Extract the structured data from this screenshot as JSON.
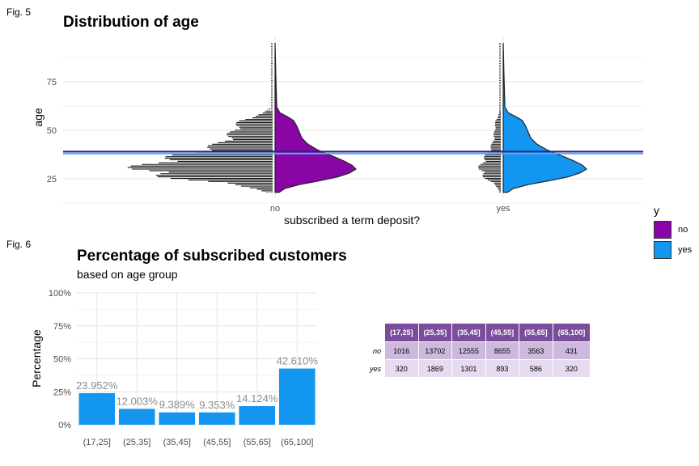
{
  "fig5": {
    "fig_label": "Fig. 5",
    "title": "Distribution of age",
    "y_axis_label": "age",
    "x_axis_label": "subscribed a term deposit?",
    "x_ticks": [
      "no",
      "yes"
    ],
    "y_ticks": [
      "25",
      "50",
      "75"
    ]
  },
  "fig6": {
    "fig_label": "Fig. 6",
    "title": "Percentage of subscribed customers",
    "subtitle": "based on age group",
    "y_axis_label": "Percentage",
    "y_ticks": [
      "0%",
      "25%",
      "50%",
      "75%",
      "100%"
    ]
  },
  "legend": {
    "title": "y",
    "items": [
      {
        "label": "no",
        "color": "#8a05a6"
      },
      {
        "label": "yes",
        "color": "#1296f0"
      }
    ]
  },
  "table": {
    "headers": [
      "(17,25]",
      "(25,35]",
      "(35,45]",
      "(45,55]",
      "(55,65]",
      "(65,100]"
    ],
    "rows": [
      {
        "label": "no",
        "values": [
          "1016",
          "13702",
          "12555",
          "8655",
          "3563",
          "431"
        ]
      },
      {
        "label": "yes",
        "values": [
          "320",
          "1869",
          "1301",
          "893",
          "586",
          "320"
        ]
      }
    ]
  },
  "colors": {
    "no": "#8a05a6",
    "yes": "#1296f0",
    "mean_line_dark": "#1f2a7a",
    "mean_line_light": "#6aa0ff",
    "header": "#7b4b9c"
  },
  "chart_data": [
    {
      "type": "area",
      "chart_kind": "half-violin with dot strip",
      "title": "Distribution of age",
      "xlabel": "subscribed a term deposit?",
      "ylabel": "age",
      "categories": [
        "no",
        "yes"
      ],
      "ylim": [
        15,
        98
      ],
      "yticks": [
        25,
        50,
        75
      ],
      "grid": true,
      "legend": "right",
      "reference_lines": [
        {
          "y": 39
        },
        {
          "y": 38
        }
      ],
      "series": [
        {
          "name": "no",
          "density": [
            [
              18,
              0.05
            ],
            [
              20,
              0.12
            ],
            [
              22,
              0.3
            ],
            [
              24,
              0.55
            ],
            [
              26,
              0.78
            ],
            [
              28,
              0.92
            ],
            [
              30,
              1.0
            ],
            [
              32,
              0.95
            ],
            [
              34,
              0.86
            ],
            [
              36,
              0.75
            ],
            [
              38,
              0.63
            ],
            [
              40,
              0.52
            ],
            [
              43,
              0.4
            ],
            [
              46,
              0.33
            ],
            [
              49,
              0.3
            ],
            [
              52,
              0.27
            ],
            [
              55,
              0.23
            ],
            [
              57,
              0.15
            ],
            [
              59,
              0.06
            ],
            [
              62,
              0.02
            ],
            [
              70,
              0.015
            ],
            [
              80,
              0.008
            ],
            [
              88,
              0.004
            ],
            [
              95,
              0.0
            ]
          ]
        },
        {
          "name": "yes",
          "density": [
            [
              18,
              0.05
            ],
            [
              20,
              0.12
            ],
            [
              22,
              0.3
            ],
            [
              24,
              0.55
            ],
            [
              26,
              0.78
            ],
            [
              28,
              0.92
            ],
            [
              30,
              1.0
            ],
            [
              32,
              0.95
            ],
            [
              34,
              0.86
            ],
            [
              36,
              0.75
            ],
            [
              38,
              0.63
            ],
            [
              40,
              0.52
            ],
            [
              43,
              0.4
            ],
            [
              46,
              0.33
            ],
            [
              49,
              0.3
            ],
            [
              52,
              0.27
            ],
            [
              55,
              0.23
            ],
            [
              57,
              0.15
            ],
            [
              59,
              0.06
            ],
            [
              62,
              0.02
            ],
            [
              70,
              0.015
            ],
            [
              80,
              0.008
            ],
            [
              88,
              0.004
            ],
            [
              95,
              0.0
            ]
          ]
        }
      ]
    },
    {
      "type": "bar",
      "title": "Percentage of subscribed customers",
      "subtitle": "based on age group",
      "xlabel": "",
      "ylabel": "Percentage",
      "categories": [
        "(17,25]",
        "(25,35]",
        "(35,45]",
        "(45,55]",
        "(55,65]",
        "(65,100]"
      ],
      "values": [
        23.952,
        12.003,
        9.389,
        9.353,
        14.124,
        42.61
      ],
      "value_labels": [
        "23.952%",
        "12.003%",
        "9.389%",
        "9.353%",
        "14.124%",
        "42.610%"
      ],
      "ylim": [
        0,
        100
      ],
      "yticks": [
        0,
        25,
        50,
        75,
        100
      ],
      "grid": true
    }
  ]
}
